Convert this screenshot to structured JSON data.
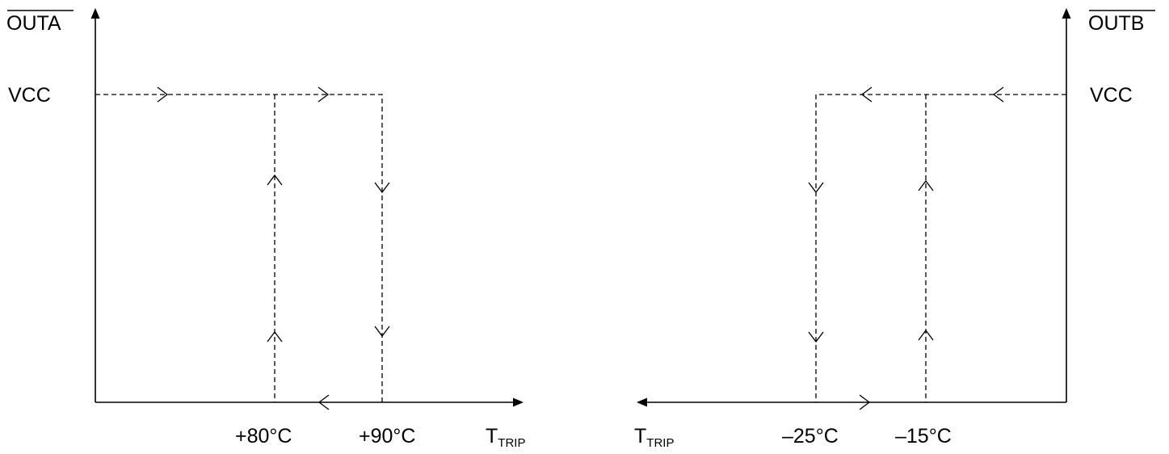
{
  "left_graph": {
    "y_label": "OUTA",
    "level_label": "VCC",
    "x_label_main": "T",
    "x_label_sub": "TRIP",
    "thresholds": [
      "+80°C",
      "+90°C"
    ]
  },
  "right_graph": {
    "y_label": "OUTB",
    "level_label": "VCC",
    "x_label_main": "T",
    "x_label_sub": "TRIP",
    "thresholds": [
      "–25°C",
      "–15°C"
    ]
  }
}
